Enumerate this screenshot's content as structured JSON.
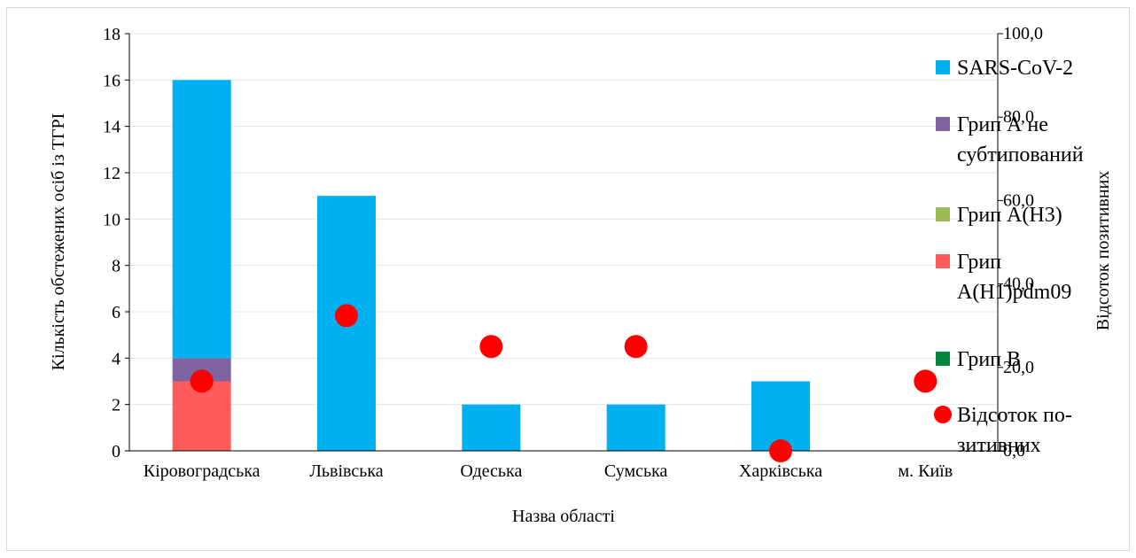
{
  "chart_data": {
    "type": "bar",
    "stacked": true,
    "categories": [
      "Кіровоградська",
      "Львівська",
      "Одеська",
      "Сумська",
      "Харківська",
      "м. Київ"
    ],
    "xlabel": "Назва області",
    "ylabel": "Кількість обстежених осіб із ТГРІ",
    "y2label": "Відсоток позитивних",
    "ylim": [
      0,
      18
    ],
    "yticks": [
      "0",
      "2",
      "4",
      "6",
      "8",
      "10",
      "12",
      "14",
      "16",
      "18"
    ],
    "y2lim": [
      0,
      100
    ],
    "y2ticks": [
      "0,0",
      "20,0",
      "40,0",
      "60,0",
      "80,0",
      "100,0"
    ],
    "grid": true,
    "legend_position": "right",
    "series": [
      {
        "name": "Грип A(H1)pdm09",
        "color": "#ff5b5b",
        "values": [
          3,
          0,
          0,
          0,
          0,
          0
        ]
      },
      {
        "name": "Грип А не субтипований",
        "color": "#8064a2",
        "values": [
          1,
          0,
          0,
          0,
          0,
          0
        ]
      },
      {
        "name": "Грип A(H3)",
        "color": "#9bbb59",
        "values": [
          0,
          0,
          0,
          0,
          0,
          0
        ]
      },
      {
        "name": "Грип В",
        "color": "#00873e",
        "values": [
          0,
          0,
          0,
          0,
          0,
          0
        ]
      },
      {
        "name": "SARS-CoV-2",
        "color": "#00b0f0",
        "values": [
          12,
          11,
          2,
          2,
          3,
          0
        ]
      }
    ],
    "line_series": {
      "name": "Відсоток по-зитивних",
      "color": "#ff0000",
      "axis": "secondary",
      "values": [
        16.7,
        32.4,
        25.0,
        25.0,
        0.0,
        16.7
      ]
    }
  },
  "legend": {
    "items": [
      {
        "label": "SARS-CoV-2",
        "lines": [
          "SARS-CoV-2"
        ],
        "color": "#00b0f0",
        "shape": "square"
      },
      {
        "label": "Грип А не субтипований",
        "lines": [
          "Грип А не",
          "субтипований"
        ],
        "color": "#8064a2",
        "shape": "square"
      },
      {
        "label": "Грип A(H3)",
        "lines": [
          "Грип A(H3)"
        ],
        "color": "#9bbb59",
        "shape": "square"
      },
      {
        "label": "Грип A(H1)pdm09",
        "lines": [
          "Грип",
          "A(H1)pdm09"
        ],
        "color": "#ff5b5b",
        "shape": "square"
      },
      {
        "label": "Грип В",
        "lines": [
          "Грип В"
        ],
        "color": "#00873e",
        "shape": "square"
      },
      {
        "label": "Відсоток по-зитивних",
        "lines": [
          "Відсоток по-",
          "зитивних"
        ],
        "color": "#ff0000",
        "shape": "circle"
      }
    ]
  }
}
